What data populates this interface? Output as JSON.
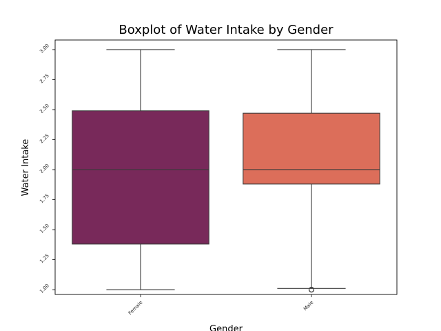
{
  "chart_data": {
    "type": "boxplot",
    "title": "Boxplot of Water Intake by Gender",
    "xlabel": "Gender",
    "ylabel": "Water Intake",
    "ylim": [
      0.96,
      3.08
    ],
    "yticks": [
      "1.00",
      "1.25",
      "1.50",
      "1.75",
      "2.00",
      "2.25",
      "2.50",
      "2.75",
      "3.00"
    ],
    "categories": [
      "Female",
      "Male"
    ],
    "boxes": [
      {
        "category": "Female",
        "color": "#78295a",
        "whisker_low": 1.0,
        "q1": 1.38,
        "median": 2.0,
        "q3": 2.49,
        "whisker_high": 3.0,
        "outliers": []
      },
      {
        "category": "Male",
        "color": "#dc6e5a",
        "whisker_low": 1.01,
        "q1": 1.88,
        "median": 2.0,
        "q3": 2.47,
        "whisker_high": 3.0,
        "outliers": [
          1.0
        ]
      }
    ],
    "grid": false,
    "legend": "none"
  }
}
